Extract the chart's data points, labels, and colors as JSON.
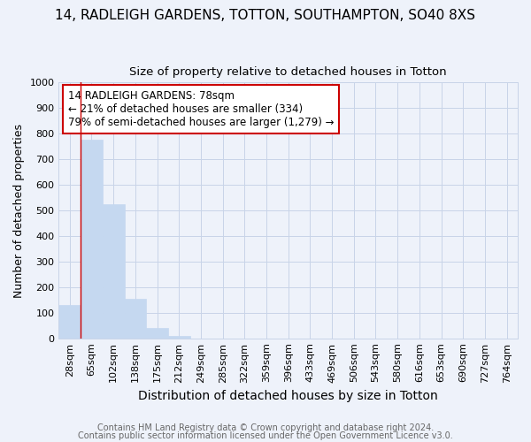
{
  "title": "14, RADLEIGH GARDENS, TOTTON, SOUTHAMPTON, SO40 8XS",
  "subtitle": "Size of property relative to detached houses in Totton",
  "xlabel": "Distribution of detached houses by size in Totton",
  "ylabel": "Number of detached properties",
  "categories": [
    "28sqm",
    "65sqm",
    "102sqm",
    "138sqm",
    "175sqm",
    "212sqm",
    "249sqm",
    "285sqm",
    "322sqm",
    "359sqm",
    "396sqm",
    "433sqm",
    "469sqm",
    "506sqm",
    "543sqm",
    "580sqm",
    "616sqm",
    "653sqm",
    "690sqm",
    "727sqm",
    "764sqm"
  ],
  "values": [
    130,
    775,
    525,
    155,
    40,
    10,
    0,
    0,
    0,
    0,
    0,
    0,
    0,
    0,
    0,
    0,
    0,
    0,
    0,
    0,
    0
  ],
  "bar_color": "#c5d8f0",
  "bar_edgecolor": "#c5d8f0",
  "grid_color": "#c8d4e8",
  "background_color": "#eef2fa",
  "red_line_x": 0.5,
  "annotation_text": "14 RADLEIGH GARDENS: 78sqm\n← 21% of detached houses are smaller (334)\n79% of semi-detached houses are larger (1,279) →",
  "annotation_box_color": "#ffffff",
  "annotation_border_color": "#cc0000",
  "footer_line1": "Contains HM Land Registry data © Crown copyright and database right 2024.",
  "footer_line2": "Contains public sector information licensed under the Open Government Licence v3.0.",
  "ylim": [
    0,
    1000
  ],
  "yticks": [
    0,
    100,
    200,
    300,
    400,
    500,
    600,
    700,
    800,
    900,
    1000
  ],
  "title_fontsize": 11,
  "subtitle_fontsize": 9.5,
  "xlabel_fontsize": 10,
  "ylabel_fontsize": 9,
  "tick_fontsize": 8,
  "footer_fontsize": 7,
  "annotation_fontsize": 8.5
}
